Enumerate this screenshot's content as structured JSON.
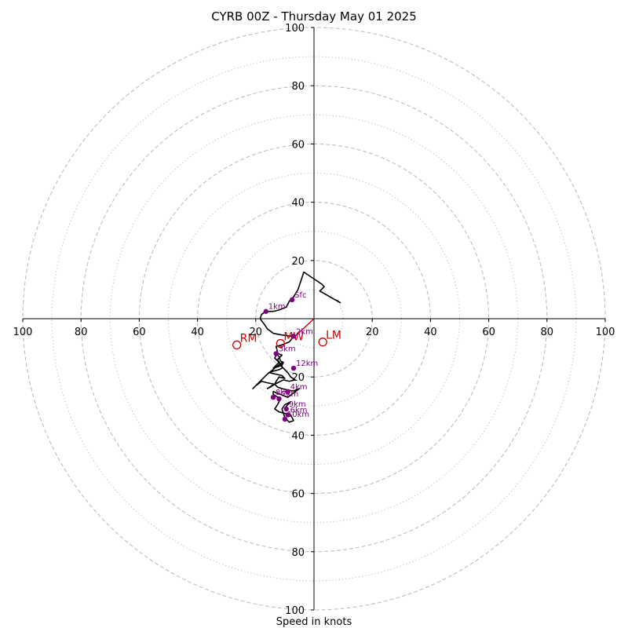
{
  "chart_data": {
    "type": "hodograph",
    "title": "CYRB 00Z - Thursday May 01 2025",
    "xlabel": "Speed in knots",
    "axis_range": [
      -100,
      100
    ],
    "x_tick_labels": [
      "100",
      "80",
      "60",
      "40",
      "20",
      "",
      "20",
      "40",
      "60",
      "80",
      "100"
    ],
    "y_tick_labels": [
      "100",
      "80",
      "60",
      "40",
      "20",
      "",
      "20",
      "40",
      "60",
      "80",
      "100"
    ],
    "ring_major_kt": [
      20,
      40,
      60,
      80,
      100
    ],
    "ring_minor_kt": [
      10,
      30,
      50,
      70,
      90
    ],
    "colors": {
      "ring": "#bfbfbf",
      "trace": "#000000",
      "height_marker": "#800080",
      "storm_motion": "#cc0000"
    },
    "hodograph_trace": [
      [
        7.5,
        6.5
      ],
      [
        9.0,
        5.5
      ],
      [
        2.0,
        9.5
      ],
      [
        3.5,
        11.0
      ],
      [
        2.5,
        12.0
      ],
      [
        -3.5,
        16.0
      ],
      [
        -5.5,
        10.0
      ],
      [
        -7.0,
        7.5
      ],
      [
        -8.5,
        6.0
      ],
      [
        -9.5,
        4.0
      ],
      [
        -12.0,
        3.0
      ],
      [
        -14.0,
        2.5
      ],
      [
        -16.5,
        2.5
      ],
      [
        -18.0,
        1.5
      ],
      [
        -18.5,
        0.0
      ],
      [
        -17.0,
        -2.0
      ],
      [
        -16.0,
        -3.5
      ],
      [
        -14.0,
        -5.0
      ],
      [
        -11.5,
        -5.5
      ],
      [
        -8.0,
        -6.0
      ],
      [
        -7.5,
        -5.8
      ],
      [
        -7.0,
        -6.0
      ],
      [
        -8.5,
        -8.0
      ],
      [
        -11.0,
        -9.0
      ],
      [
        -13.0,
        -9.5
      ],
      [
        -12.5,
        -11.5
      ],
      [
        -13.5,
        -13.5
      ],
      [
        -12.0,
        -15.0
      ],
      [
        -13.0,
        -16.0
      ],
      [
        -14.0,
        -17.0
      ],
      [
        -11.0,
        -16.0
      ],
      [
        -10.5,
        -15.0
      ],
      [
        -11.5,
        -14.5
      ],
      [
        -12.0,
        -13.0
      ],
      [
        -13.0,
        -12.0
      ],
      [
        -13.5,
        -11.5
      ],
      [
        -11.0,
        -12.5
      ],
      [
        -12.5,
        -14.0
      ],
      [
        -11.0,
        -16.5
      ],
      [
        -9.0,
        -18.5
      ],
      [
        -8.0,
        -20.0
      ],
      [
        -6.5,
        -21.0
      ],
      [
        -8.5,
        -21.5
      ],
      [
        -10.5,
        -21.0
      ],
      [
        -12.5,
        -22.0
      ],
      [
        -14.5,
        -23.0
      ],
      [
        -16.0,
        -24.0
      ],
      [
        -15.0,
        -23.5
      ],
      [
        -13.5,
        -22.5
      ],
      [
        -13.0,
        -21.5
      ],
      [
        -12.0,
        -20.0
      ],
      [
        -10.0,
        -20.5
      ],
      [
        -11.0,
        -19.5
      ],
      [
        -15.5,
        -18.5
      ],
      [
        -14.0,
        -18.0
      ],
      [
        -12.0,
        -17.5
      ],
      [
        -11.0,
        -17.0
      ],
      [
        -11.0,
        -15.0
      ],
      [
        -13.5,
        -17.0
      ],
      [
        -16.0,
        -19.0
      ],
      [
        -17.5,
        -20.5
      ],
      [
        -19.0,
        -22.0
      ],
      [
        -21.0,
        -24.0
      ],
      [
        -20.0,
        -23.0
      ],
      [
        -18.0,
        -21.5
      ],
      [
        -16.0,
        -22.0
      ],
      [
        -13.5,
        -22.5
      ],
      [
        -12.5,
        -23.5
      ],
      [
        -11.0,
        -24.0
      ],
      [
        -9.0,
        -24.5
      ],
      [
        -7.0,
        -24.8
      ],
      [
        -5.0,
        -24.0
      ],
      [
        -9.0,
        -27.0
      ],
      [
        -14.0,
        -25.0
      ],
      [
        -14.0,
        -26.0
      ],
      [
        -11.5,
        -27.5
      ],
      [
        -12.5,
        -29.5
      ],
      [
        -13.5,
        -31.0
      ],
      [
        -12.0,
        -32.0
      ],
      [
        -10.0,
        -32.5
      ],
      [
        -8.0,
        -33.0
      ],
      [
        -7.0,
        -35.0
      ],
      [
        -8.5,
        -35.5
      ],
      [
        -10.0,
        -34.0
      ],
      [
        -11.0,
        -31.0
      ],
      [
        -10.0,
        -29.5
      ],
      [
        -8.0,
        -28.5
      ],
      [
        -9.5,
        -30.0
      ],
      [
        -10.0,
        -31.0
      ]
    ],
    "height_markers": [
      {
        "label": "Sfc",
        "u": -7.5,
        "v": 6.5
      },
      {
        "label": "1km",
        "u": -16.5,
        "v": 2.5
      },
      {
        "label": "2km",
        "u": -7.0,
        "v": -6.0
      },
      {
        "label": "3km",
        "u": -13.0,
        "v": -12.0
      },
      {
        "label": "4km",
        "u": -9.0,
        "v": -25.0
      },
      {
        "label": "6km",
        "u": -9.0,
        "v": -33.0
      },
      {
        "label": "7km",
        "u": -12.0,
        "v": -27.5
      },
      {
        "label": "8km",
        "u": -14.0,
        "v": -27.0
      },
      {
        "label": "9km",
        "u": -9.5,
        "v": -31.0
      },
      {
        "label": "10km",
        "u": -10.0,
        "v": -34.5
      },
      {
        "label": "12km",
        "u": -7.0,
        "v": -17.0
      }
    ],
    "storm_motion": [
      {
        "label": "RM",
        "u": -26.5,
        "v": -9.0
      },
      {
        "label": "LM",
        "u": 3.0,
        "v": -8.0
      },
      {
        "label": "MW",
        "u": -11.5,
        "v": -8.5
      }
    ],
    "shear_vector": {
      "from": [
        0,
        0
      ],
      "to": [
        -7.0,
        -6.5
      ]
    }
  }
}
